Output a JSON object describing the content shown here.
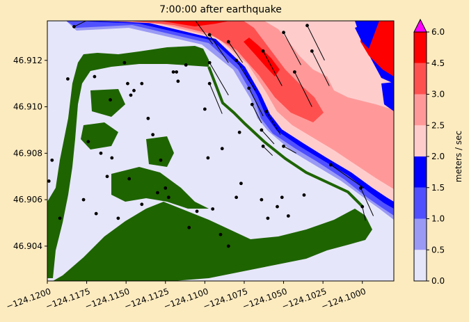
{
  "chart_data": {
    "type": "heatmap",
    "title": "7:00:00 after earthquake",
    "xlabel": "",
    "ylabel": "",
    "xlim": [
      -124.12,
      -124.098
    ],
    "ylim": [
      46.9025,
      46.9137
    ],
    "xticks": [
      "−124.1200",
      "−124.1175",
      "−124.1150",
      "−124.1125",
      "−124.1100",
      "−124.1075",
      "−124.1050",
      "−124.1025",
      "−124.1000"
    ],
    "xtick_values": [
      -124.12,
      -124.1175,
      -124.115,
      -124.1125,
      -124.11,
      -124.1075,
      -124.105,
      -124.1025,
      -124.1
    ],
    "yticks": [
      "46.904",
      "46.906",
      "46.908",
      "46.910",
      "46.912"
    ],
    "ytick_values": [
      46.904,
      46.906,
      46.908,
      46.91,
      46.912
    ],
    "colorbar": {
      "label": "meters / sec",
      "levels": [
        0.0,
        0.5,
        1.0,
        1.5,
        2.0,
        2.5,
        3.0,
        4.5,
        6.0
      ],
      "tick_labels": [
        "0.0",
        "0.5",
        "1.0",
        "1.5",
        "2.0",
        "2.5",
        "3.0",
        "4.5",
        "6.0"
      ],
      "colors": [
        "#e6e6fa",
        "#9a9af5",
        "#5050ff",
        "#0000ff",
        "#ffcccc",
        "#ff9999",
        "#ff5050",
        "#ff0000"
      ],
      "extend_color": "#ff00ff"
    },
    "land_color": "#1e6400",
    "vectors": [
      {
        "x": -124.1183,
        "y": 46.91345,
        "dx": 0.0009,
        "dy": 0.0003
      },
      {
        "x": -124.1107,
        "y": 46.9138,
        "dx": 0.0012,
        "dy": -0.0011
      },
      {
        "x": -124.1097,
        "y": 46.9131,
        "dx": 0.0012,
        "dy": -0.0012
      },
      {
        "x": -124.1085,
        "y": 46.9128,
        "dx": 0.0009,
        "dy": -0.0009
      },
      {
        "x": -124.108,
        "y": 46.912,
        "dx": 0.0012,
        "dy": -0.0013
      },
      {
        "x": -124.1063,
        "y": 46.9124,
        "dx": 0.0012,
        "dy": -0.0015
      },
      {
        "x": -124.105,
        "y": 46.9132,
        "dx": 0.0011,
        "dy": -0.0014
      },
      {
        "x": -124.1035,
        "y": 46.9135,
        "dx": 0.0011,
        "dy": -0.0015
      },
      {
        "x": -124.1032,
        "y": 46.9124,
        "dx": 0.0011,
        "dy": -0.0015
      },
      {
        "x": -124.1043,
        "y": 46.9115,
        "dx": 0.0011,
        "dy": -0.0015
      },
      {
        "x": -124.1097,
        "y": 46.9119,
        "dx": 0.0012,
        "dy": -0.0014
      },
      {
        "x": -124.1072,
        "y": 46.9108,
        "dx": 0.0009,
        "dy": -0.0012
      },
      {
        "x": -124.1061,
        "y": 46.9098,
        "dx": 0.0009,
        "dy": -0.001
      },
      {
        "x": -124.1064,
        "y": 46.909,
        "dx": 0.0008,
        "dy": -0.0006
      },
      {
        "x": -124.107,
        "y": 46.9101,
        "dx": 0.0006,
        "dy": -0.0008
      },
      {
        "x": -124.1063,
        "y": 46.9083,
        "dx": 0.0006,
        "dy": -0.0004
      },
      {
        "x": -124.105,
        "y": 46.9083,
        "dx": 0.0008,
        "dy": -0.0003
      },
      {
        "x": -124.102,
        "y": 46.9075,
        "dx": 0.0021,
        "dy": -0.001
      },
      {
        "x": -124.1001,
        "y": 46.9065,
        "dx": 0.0008,
        "dy": -0.0012
      },
      {
        "x": -124.1,
        "y": 46.9057,
        "dx": 0.0002,
        "dy": -0.0006
      },
      {
        "x": -124.1097,
        "y": 46.911,
        "dx": 0.0008,
        "dy": -0.0013
      }
    ],
    "points": [
      [
        -124.1197,
        46.9077
      ],
      [
        -124.1199,
        46.9068
      ],
      [
        -124.1192,
        46.9052
      ],
      [
        -124.1177,
        46.906
      ],
      [
        -124.1174,
        46.9085
      ],
      [
        -124.1166,
        46.908
      ],
      [
        -124.1162,
        46.907
      ],
      [
        -124.1159,
        46.9078
      ],
      [
        -124.1169,
        46.9054
      ],
      [
        -124.1148,
        46.9069
      ],
      [
        -124.1155,
        46.9052
      ],
      [
        -124.114,
        46.9058
      ],
      [
        -124.1123,
        46.9061
      ],
      [
        -124.1125,
        46.9065
      ],
      [
        -124.1128,
        46.9077
      ],
      [
        -124.1133,
        46.9088
      ],
      [
        -124.1136,
        46.9095
      ],
      [
        -124.1147,
        46.9105
      ],
      [
        -124.1149,
        46.911
      ],
      [
        -124.1145,
        46.9107
      ],
      [
        -124.114,
        46.911
      ],
      [
        -124.116,
        46.9103
      ],
      [
        -124.117,
        46.9113
      ],
      [
        -124.1187,
        46.9112
      ],
      [
        -124.1151,
        46.9119
      ],
      [
        -124.112,
        46.9115
      ],
      [
        -124.1117,
        46.9111
      ],
      [
        -124.11,
        46.9099
      ],
      [
        -124.1089,
        46.9082
      ],
      [
        -124.1078,
        46.9089
      ],
      [
        -124.1098,
        46.9078
      ],
      [
        -124.1095,
        46.9056
      ],
      [
        -124.108,
        46.9061
      ],
      [
        -124.1077,
        46.9067
      ],
      [
        -124.1064,
        46.906
      ],
      [
        -124.1054,
        46.9057
      ],
      [
        -124.1051,
        46.9061
      ],
      [
        -124.106,
        46.9052
      ],
      [
        -124.109,
        46.9045
      ],
      [
        -124.111,
        46.9048
      ],
      [
        -124.1105,
        46.9055
      ],
      [
        -124.1085,
        46.904
      ],
      [
        -124.113,
        46.9063
      ],
      [
        -124.1118,
        46.9115
      ],
      [
        -124.1047,
        46.9053
      ],
      [
        -124.1037,
        46.9062
      ],
      [
        -124.1112,
        46.9118
      ],
      [
        -124.1097,
        46.9131
      ]
    ]
  }
}
